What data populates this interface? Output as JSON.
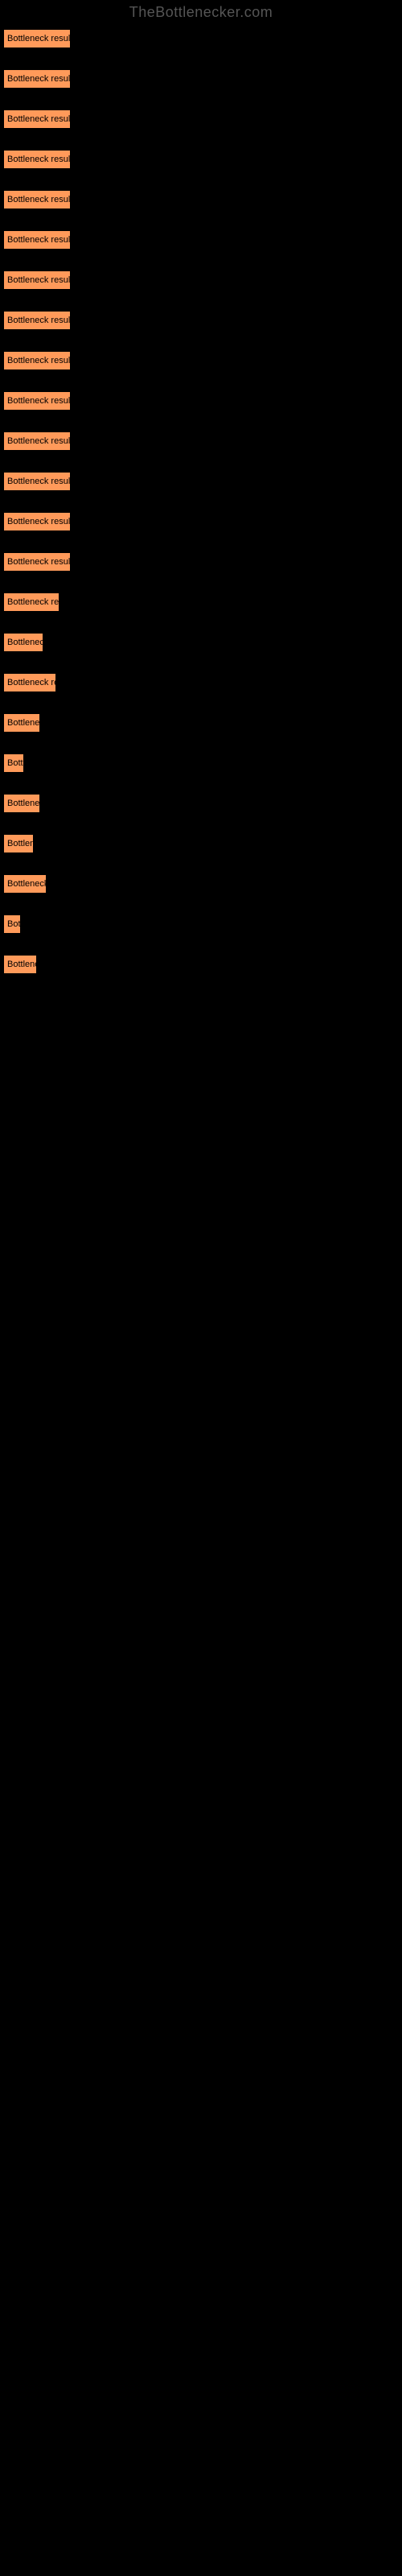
{
  "watermark": "TheBottlenecker.com",
  "button_label": "Bottleneck result",
  "button_bg": "#ff9a5a",
  "button_text_color": "#000000",
  "bar_widths": [
    84,
    84,
    84,
    84,
    84,
    84,
    84,
    84,
    84,
    84,
    84,
    84,
    84,
    84,
    70,
    50,
    66,
    46,
    26,
    46,
    38,
    54,
    22,
    42
  ]
}
